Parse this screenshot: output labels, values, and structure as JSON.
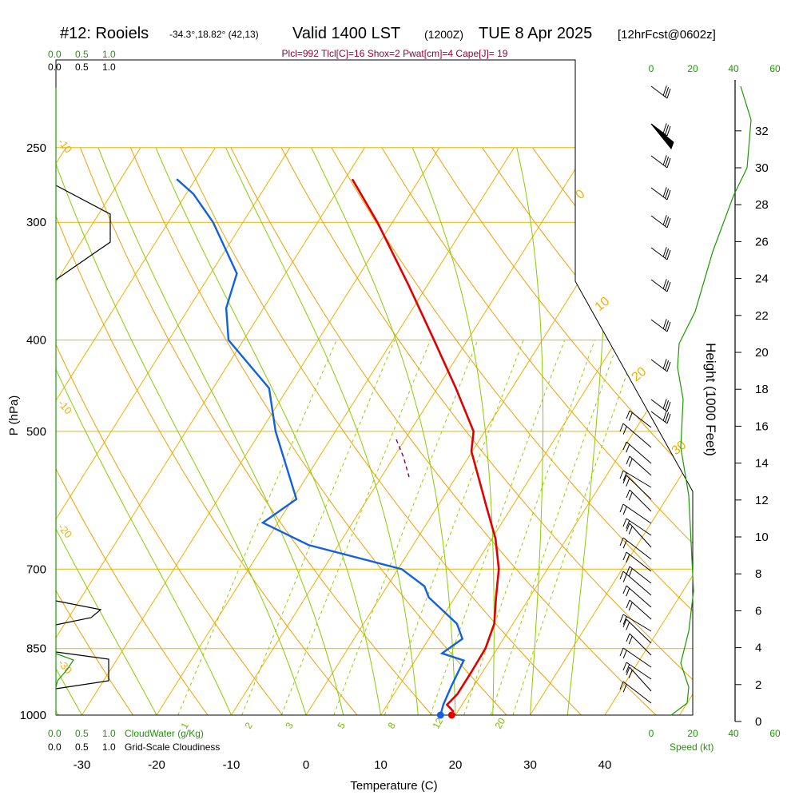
{
  "header": {
    "station": "#12: Rooiels",
    "coords": "-34.3°,18.82° (42,13)",
    "valid": "Valid 1400 LST",
    "zulu": "(1200Z)",
    "date": "TUE 8 Apr 2025",
    "fcst": "[12hrFcst@0602z]",
    "params": "Plcl=992 Tlcl[C]=16 Shox=2 Pwat[cm]=4 Cape[J]= 19"
  },
  "chart_data": {
    "type": "skew-t",
    "xlabel": "Temperature (C)",
    "ylabel": "P (hPa)",
    "y2label": "Height (1000 Feet)",
    "temperature_ticks": [
      "-30",
      "-20",
      "-10",
      "0",
      "10",
      "20",
      "30",
      "40"
    ],
    "pressure_ticks": [
      "250",
      "300",
      "400",
      "500",
      "700",
      "850",
      "1000"
    ],
    "height_ticks": [
      "0",
      "2",
      "4",
      "6",
      "8",
      "10",
      "12",
      "14",
      "16",
      "18",
      "20",
      "22",
      "24",
      "26",
      "28",
      "30",
      "32"
    ],
    "speed_ticks": [
      "0",
      "20",
      "40",
      "60"
    ],
    "isotherm_labels": [
      "0",
      "10",
      "20",
      "30"
    ],
    "left_isotherm_labels": [
      "-10",
      "-10",
      "-20",
      "-30"
    ],
    "mixing_ratio_labels": [
      "1",
      "2",
      "3",
      "5",
      "8",
      "12",
      "20"
    ],
    "cloudwater_scale": [
      "0.0",
      "0.5",
      "1.0"
    ],
    "cloudwater_label": "CloudWater (g/Kg)",
    "cloudiness_scale": [
      "0.0",
      "0.5",
      "1.0"
    ],
    "cloudiness_label": "Grid-Scale Cloudiness",
    "speed_label": "Speed (kt)",
    "temperature": [
      {
        "p": 992,
        "t": 19.5
      },
      {
        "p": 975,
        "t": 18.0
      },
      {
        "p": 950,
        "t": 18.5
      },
      {
        "p": 900,
        "t": 18.5
      },
      {
        "p": 850,
        "t": 18.4
      },
      {
        "p": 800,
        "t": 17.5
      },
      {
        "p": 750,
        "t": 15.5
      },
      {
        "p": 700,
        "t": 13.5
      },
      {
        "p": 650,
        "t": 10.5
      },
      {
        "p": 600,
        "t": 6.5
      },
      {
        "p": 550,
        "t": 2.2
      },
      {
        "p": 525,
        "t": -0.1
      },
      {
        "p": 500,
        "t": -1.5
      },
      {
        "p": 450,
        "t": -7.5
      },
      {
        "p": 400,
        "t": -14.5
      },
      {
        "p": 350,
        "t": -22.5
      },
      {
        "p": 300,
        "t": -32.0
      },
      {
        "p": 270,
        "t": -39.0
      }
    ],
    "dewpoint": [
      {
        "p": 1000,
        "t": 18.0
      },
      {
        "p": 975,
        "t": 17.5
      },
      {
        "p": 930,
        "t": 17.0
      },
      {
        "p": 875,
        "t": 16.5
      },
      {
        "p": 860,
        "t": 13.0
      },
      {
        "p": 830,
        "t": 14.5
      },
      {
        "p": 800,
        "t": 12.5
      },
      {
        "p": 750,
        "t": 6.5
      },
      {
        "p": 730,
        "t": 5.0
      },
      {
        "p": 700,
        "t": 0.5
      },
      {
        "p": 660,
        "t": -14.0
      },
      {
        "p": 625,
        "t": -22.0
      },
      {
        "p": 590,
        "t": -19.5
      },
      {
        "p": 500,
        "t": -28.0
      },
      {
        "p": 450,
        "t": -32.5
      },
      {
        "p": 400,
        "t": -42.0
      },
      {
        "p": 370,
        "t": -45.0
      },
      {
        "p": 340,
        "t": -46.5
      },
      {
        "p": 300,
        "t": -54.0
      },
      {
        "p": 280,
        "t": -59.0
      },
      {
        "p": 270,
        "t": -62.5
      }
    ]
  },
  "colors": {
    "temperature": "#e00000",
    "dewpoint": "#1060e0",
    "isobar": "#f0b000",
    "isotherm": "#f0b000",
    "dry_adiabat": "#f0a000",
    "moist_adiabat": "#88cc00",
    "mixing_ratio": "#99cc00",
    "height_line": "#1a9900"
  }
}
